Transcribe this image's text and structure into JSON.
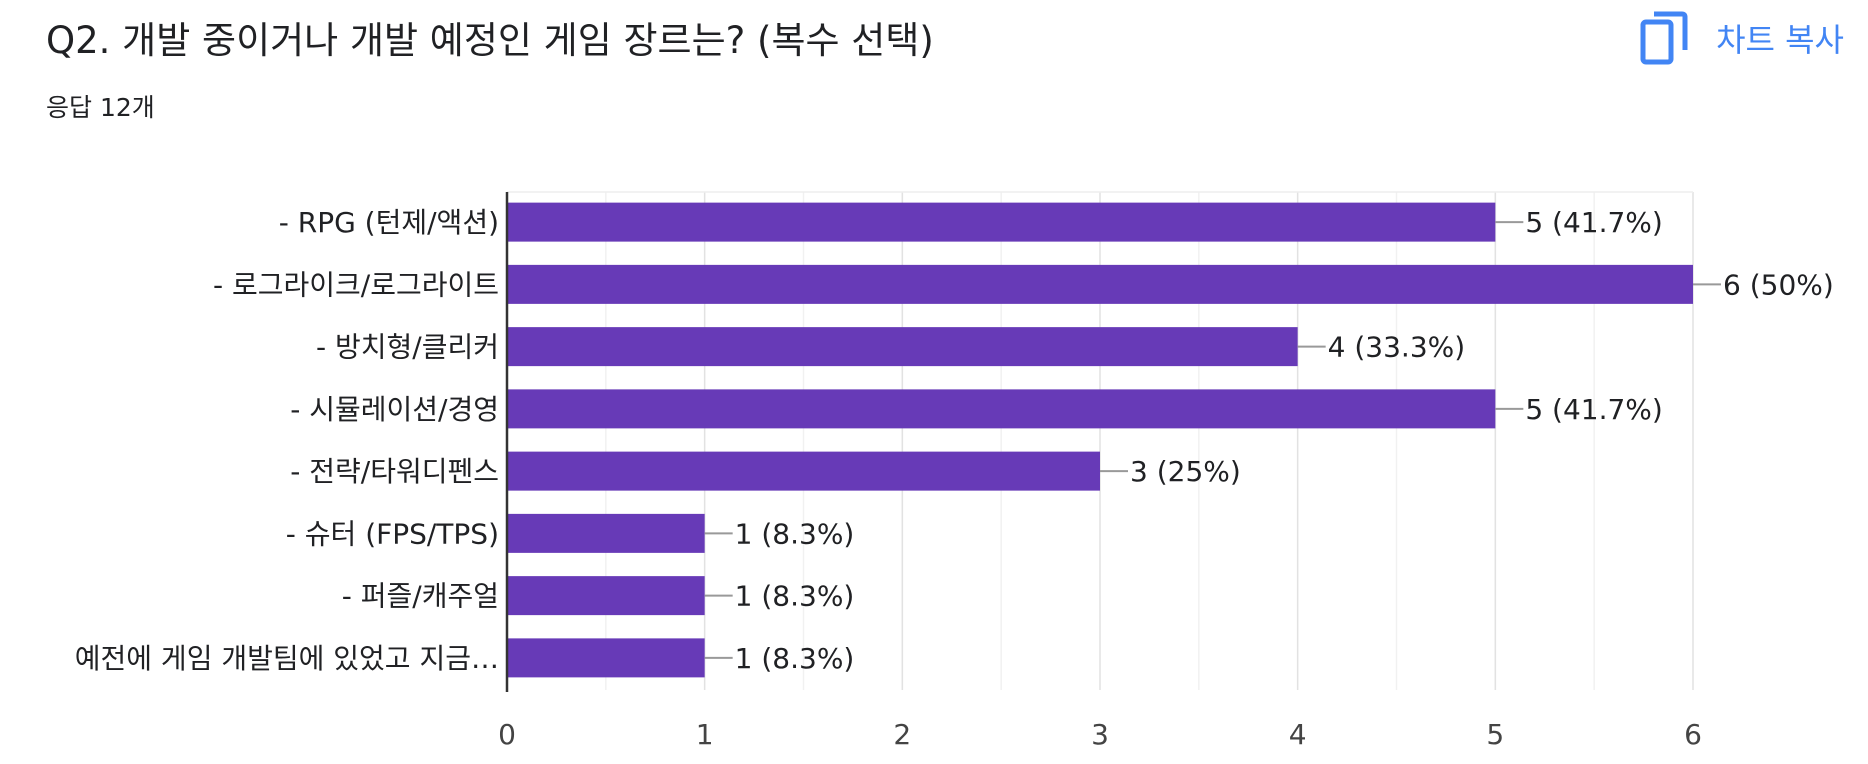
{
  "header": {
    "title": "Q2. 개발 중이거나 개발 예정인 게임 장르는? (복수 선택)",
    "response_count": "응답 12개",
    "copy_label": "차트 복사",
    "copy_icon": "copy-icon"
  },
  "colors": {
    "bar": "#673ab7",
    "accent": "#4285f4",
    "grid": "#e8e8e8",
    "text": "#202124"
  },
  "chart_data": {
    "type": "bar",
    "orientation": "horizontal",
    "categories": [
      "- RPG (턴제/액션)",
      "- 로그라이크/로그라이트",
      "- 방치형/클리커",
      "- 시뮬레이션/경영",
      "- 전략/타워디펜스",
      "- 슈터 (FPS/TPS)",
      "- 퍼즐/캐주얼",
      "예전에 게임 개발팀에 있었고 지금…"
    ],
    "values": [
      5,
      6,
      4,
      5,
      3,
      1,
      1,
      1
    ],
    "data_labels": [
      "5 (41.7%)",
      "6 (50%)",
      "4 (33.3%)",
      "5 (41.7%)",
      "3 (25%)",
      "1 (8.3%)",
      "1 (8.3%)",
      "1 (8.3%)"
    ],
    "xlim": [
      0,
      6
    ],
    "xticks": [
      "0",
      "1",
      "2",
      "3",
      "4",
      "5",
      "6"
    ],
    "xlabel": "",
    "ylabel": "",
    "grid": true
  }
}
